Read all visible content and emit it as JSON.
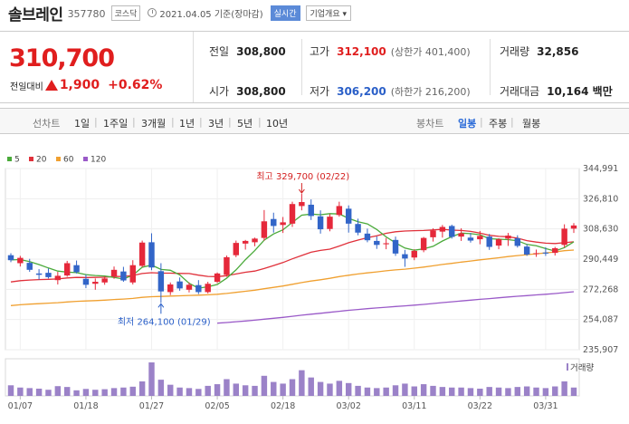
{
  "header": {
    "name": "솔브레인",
    "code": "357780",
    "market": "코스닥",
    "date": "2021.04.05 기준(장마감)",
    "realtime_label": "실시간",
    "corp_label": "기업개요 ▾"
  },
  "quote": {
    "price": "310,700",
    "change_label": "전일대비",
    "change": "1,900",
    "change_pct": "+0.62%",
    "prev_close_label": "전일",
    "prev_close": "308,800",
    "high_label": "고가",
    "high": "312,100",
    "upper_limit": "(상한가 401,400)",
    "volume_label": "거래량",
    "volume": "32,856",
    "open_label": "시가",
    "open": "308,800",
    "low_label": "저가",
    "low": "306,200",
    "lower_limit": "(하한가 216,200)",
    "amount_label": "거래대금",
    "amount": "10,164 백만"
  },
  "toolbar": {
    "line_title": "선차트",
    "line_items": [
      "1일",
      "1주일",
      "3개월",
      "1년",
      "3년",
      "5년",
      "10년"
    ],
    "candle_title": "봉차트",
    "candle_items": [
      "일봉",
      "주봉",
      "월봉"
    ],
    "selected": "일봉"
  },
  "colors": {
    "up": "#e5283a",
    "down": "#3265c8",
    "ma5": "#4aaa3a",
    "ma20": "#e0303a",
    "ma60": "#f0a030",
    "ma120": "#9a5ac8",
    "volume": "#9b82c8"
  },
  "chart_data": {
    "type": "candlestick",
    "legend": [
      {
        "name": "5",
        "color": "#4aaa3a"
      },
      {
        "name": "20",
        "color": "#e0303a"
      },
      {
        "name": "60",
        "color": "#f0a030"
      },
      {
        "name": "120",
        "color": "#9a5ac8"
      }
    ],
    "y_ticks": [
      "344,991",
      "326,810",
      "308,630",
      "290,449",
      "272,268",
      "254,087",
      "235,907"
    ],
    "ylim": [
      235907,
      344991
    ],
    "x_ticks": [
      "01/07",
      "01/18",
      "01/27",
      "02/05",
      "02/18",
      "03/02",
      "03/11",
      "03/22",
      "03/31"
    ],
    "x_tick_index": [
      1,
      8,
      15,
      22,
      29,
      36,
      43,
      50,
      57
    ],
    "annotations": [
      {
        "text": "최고 329,700 (02/22)",
        "index": 31,
        "value": 329700,
        "position": "above"
      },
      {
        "text": "최저 264,100 (01/29)",
        "index": 16,
        "value": 264100,
        "position": "below"
      }
    ],
    "volume_label": "거래량",
    "candles": [
      [
        292800,
        294000,
        288600,
        289800
      ],
      [
        288000,
        292400,
        286000,
        291200
      ],
      [
        288200,
        290600,
        282800,
        284000
      ],
      [
        281800,
        284400,
        278200,
        281000
      ],
      [
        282200,
        284800,
        278800,
        279600
      ],
      [
        277800,
        282800,
        275200,
        280400
      ],
      [
        280600,
        289400,
        279800,
        288000
      ],
      [
        286800,
        289600,
        281800,
        282600
      ],
      [
        278600,
        281200,
        273000,
        275000
      ],
      [
        275600,
        278800,
        272000,
        276800
      ],
      [
        276400,
        280000,
        275000,
        278800
      ],
      [
        280000,
        286000,
        278600,
        284000
      ],
      [
        283000,
        285800,
        276800,
        277600
      ],
      [
        276400,
        289800,
        275200,
        286800
      ],
      [
        286400,
        301600,
        285600,
        300400
      ],
      [
        300600,
        306000,
        283800,
        285400
      ],
      [
        283200,
        288000,
        264100,
        271000
      ],
      [
        270600,
        276400,
        268800,
        275200
      ],
      [
        277000,
        279400,
        271400,
        272800
      ],
      [
        272000,
        276400,
        270400,
        275000
      ],
      [
        274800,
        277800,
        269400,
        270600
      ],
      [
        270600,
        276800,
        269800,
        275600
      ],
      [
        276800,
        282400,
        276000,
        281800
      ],
      [
        281000,
        292600,
        279800,
        291600
      ],
      [
        292800,
        301600,
        291600,
        300200
      ],
      [
        299800,
        302000,
        296200,
        301400
      ],
      [
        300600,
        303400,
        298200,
        302800
      ],
      [
        303200,
        320000,
        301600,
        313200
      ],
      [
        314600,
        318400,
        306400,
        310400
      ],
      [
        311000,
        315800,
        306200,
        312600
      ],
      [
        311800,
        325000,
        309800,
        323600
      ],
      [
        322400,
        329700,
        319800,
        324800
      ],
      [
        323200,
        326400,
        314000,
        316400
      ],
      [
        316200,
        319800,
        305800,
        308400
      ],
      [
        308600,
        317600,
        307200,
        316000
      ],
      [
        317000,
        325000,
        316000,
        322400
      ],
      [
        320800,
        322800,
        306400,
        311800
      ],
      [
        311600,
        314800,
        304800,
        306400
      ],
      [
        305800,
        308800,
        300600,
        301800
      ],
      [
        301400,
        304200,
        296600,
        299000
      ],
      [
        299400,
        303200,
        296400,
        300000
      ],
      [
        302000,
        304000,
        292400,
        293800
      ],
      [
        293400,
        296000,
        285800,
        290800
      ],
      [
        291400,
        296400,
        289800,
        295400
      ],
      [
        295800,
        303800,
        294600,
        303200
      ],
      [
        303600,
        309000,
        301000,
        307600
      ],
      [
        307000,
        311000,
        303400,
        309800
      ],
      [
        310400,
        311200,
        302800,
        303800
      ],
      [
        304000,
        309000,
        301400,
        306000
      ],
      [
        303400,
        306200,
        300400,
        301600
      ],
      [
        302400,
        307400,
        299400,
        304400
      ],
      [
        304000,
        305600,
        296000,
        297800
      ],
      [
        298600,
        303000,
        296400,
        302400
      ],
      [
        302800,
        306200,
        298400,
        304600
      ],
      [
        303000,
        304800,
        297400,
        298400
      ],
      [
        298000,
        299400,
        292400,
        293200
      ],
      [
        293600,
        296200,
        291800,
        294000
      ],
      [
        294400,
        297600,
        292400,
        293800
      ],
      [
        294200,
        297800,
        292600,
        297000
      ],
      [
        299000,
        311400,
        297400,
        308800
      ],
      [
        308800,
        312100,
        306200,
        310700
      ]
    ],
    "volumes": [
      38,
      30,
      28,
      26,
      22,
      35,
      32,
      20,
      25,
      22,
      24,
      28,
      30,
      33,
      52,
      120,
      58,
      40,
      30,
      28,
      25,
      36,
      42,
      60,
      44,
      38,
      36,
      72,
      50,
      44,
      60,
      92,
      66,
      50,
      44,
      54,
      46,
      36,
      30,
      28,
      30,
      38,
      44,
      34,
      42,
      36,
      32,
      30,
      30,
      28,
      26,
      32,
      30,
      28,
      32,
      34,
      30,
      28,
      34,
      52,
      30
    ]
  }
}
